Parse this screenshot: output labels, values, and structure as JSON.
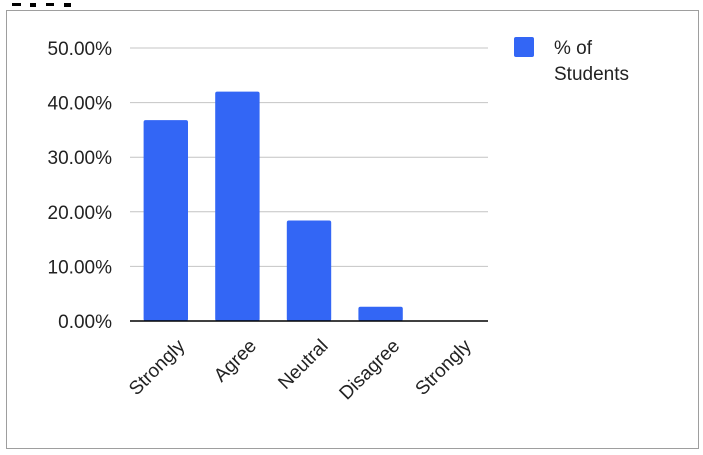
{
  "chart_data": {
    "type": "bar",
    "title": "",
    "xlabel": "",
    "ylabel": "",
    "categories": [
      "Strongly",
      "Agree",
      "Neutral",
      "Disagree",
      "Strongly"
    ],
    "series": [
      {
        "name": "% of Students",
        "values": [
          36.8,
          42.0,
          18.4,
          2.6,
          0.0
        ]
      }
    ],
    "ylim": [
      0,
      50
    ],
    "yticks": [
      "0.00%",
      "10.00%",
      "20.00%",
      "30.00%",
      "40.00%",
      "50.00%"
    ],
    "legend": {
      "position": "right",
      "label_line1": "% of",
      "label_line2": "Students"
    },
    "colors": {
      "bar": "#3366f5",
      "grid": "#c4c4c4",
      "axis": "#000000",
      "frame": "#9e9e9e"
    },
    "grid": true
  }
}
